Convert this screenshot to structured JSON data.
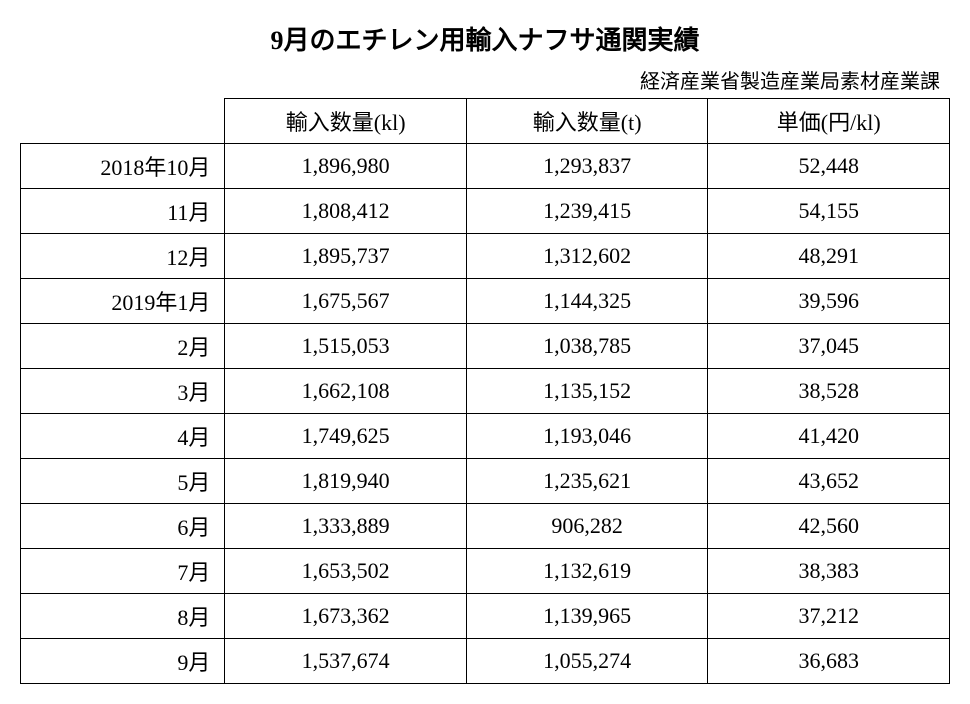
{
  "title": "9月のエチレン用輸入ナフサ通関実績",
  "subtitle": "経済産業省製造産業局素材産業課",
  "table": {
    "columns": [
      "",
      "輸入数量(kl)",
      "輸入数量(t)",
      "単価(円/kl)"
    ],
    "column_widths_pct": [
      22,
      26,
      26,
      26
    ],
    "header_align": "center",
    "period_align": "right",
    "number_align": "center",
    "border_color": "#000000",
    "background_color": "#ffffff",
    "font_size_pt": 16,
    "rows": [
      {
        "period": "2018年10月",
        "kl": "1,896,980",
        "t": "1,293,837",
        "price": "52,448"
      },
      {
        "period": "11月",
        "kl": "1,808,412",
        "t": "1,239,415",
        "price": "54,155"
      },
      {
        "period": "12月",
        "kl": "1,895,737",
        "t": "1,312,602",
        "price": "48,291"
      },
      {
        "period": "2019年1月",
        "kl": "1,675,567",
        "t": "1,144,325",
        "price": "39,596"
      },
      {
        "period": "2月",
        "kl": "1,515,053",
        "t": "1,038,785",
        "price": "37,045"
      },
      {
        "period": "3月",
        "kl": "1,662,108",
        "t": "1,135,152",
        "price": "38,528"
      },
      {
        "period": "4月",
        "kl": "1,749,625",
        "t": "1,193,046",
        "price": "41,420"
      },
      {
        "period": "5月",
        "kl": "1,819,940",
        "t": "1,235,621",
        "price": "43,652"
      },
      {
        "period": "6月",
        "kl": "1,333,889",
        "t": "906,282",
        "price": "42,560"
      },
      {
        "period": "7月",
        "kl": "1,653,502",
        "t": "1,132,619",
        "price": "38,383"
      },
      {
        "period": "8月",
        "kl": "1,673,362",
        "t": "1,139,965",
        "price": "37,212"
      },
      {
        "period": "9月",
        "kl": "1,537,674",
        "t": "1,055,274",
        "price": "36,683"
      }
    ]
  },
  "style": {
    "title_fontsize_pt": 20,
    "title_weight": "bold",
    "subtitle_fontsize_pt": 15,
    "text_color": "#000000",
    "background_color": "#ffffff",
    "font_family": "serif"
  }
}
